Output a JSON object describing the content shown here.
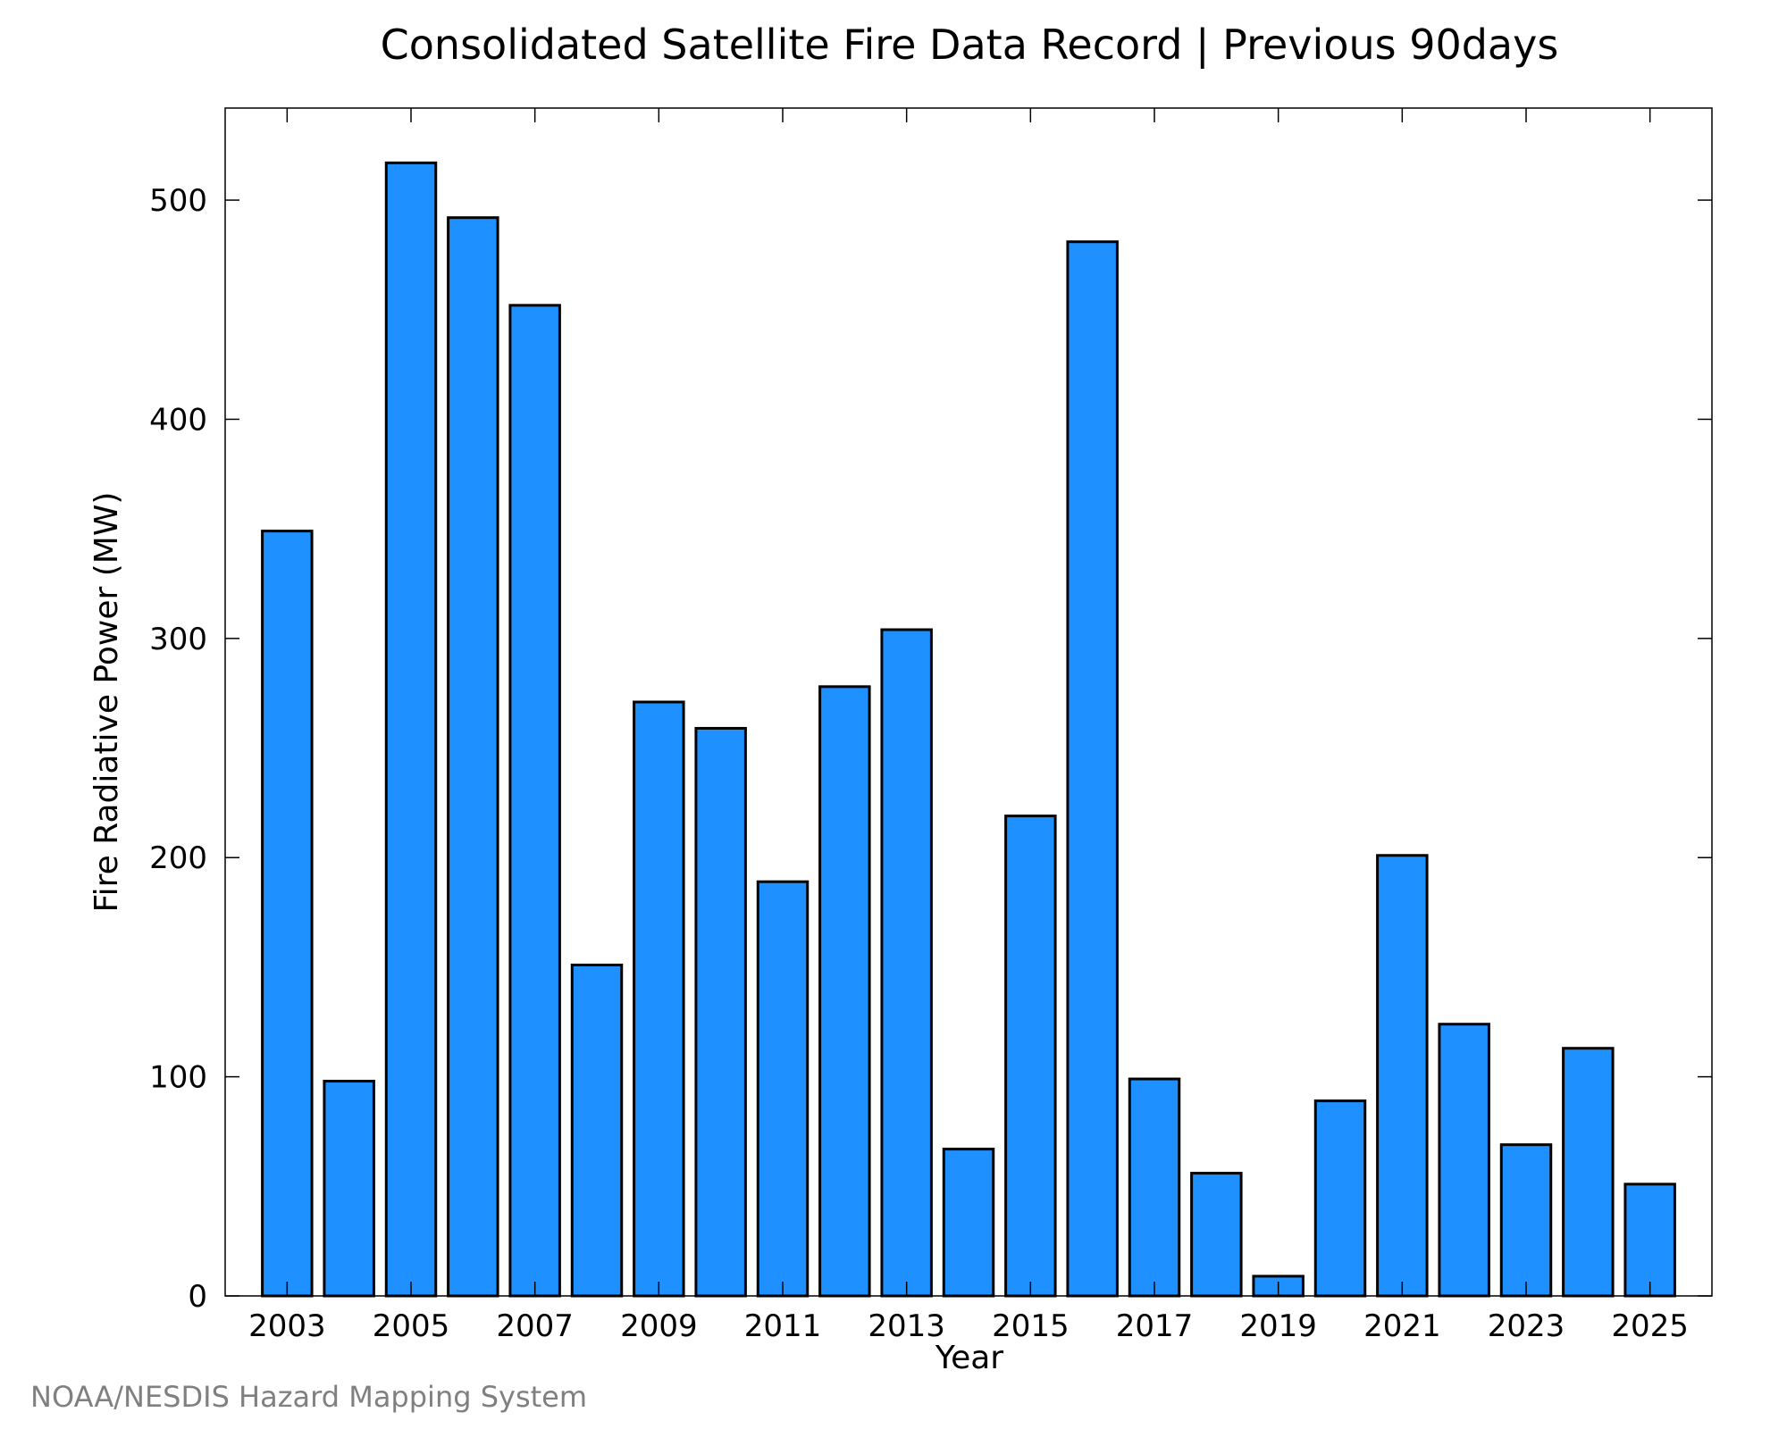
{
  "chart_data": {
    "type": "bar",
    "title": "Consolidated Satellite Fire Data Record | Previous 90days",
    "xlabel": "Year",
    "ylabel": "Fire Radiative Power (MW)",
    "categories": [
      2003,
      2004,
      2005,
      2006,
      2007,
      2008,
      2009,
      2010,
      2011,
      2012,
      2013,
      2014,
      2015,
      2016,
      2017,
      2018,
      2019,
      2020,
      2021,
      2022,
      2023,
      2024,
      2025
    ],
    "values": [
      349,
      98,
      517,
      492,
      452,
      151,
      271,
      259,
      189,
      278,
      304,
      67,
      219,
      481,
      99,
      56,
      9,
      89,
      201,
      124,
      69,
      113,
      51
    ],
    "x_tick_labels": [
      "2003",
      "2005",
      "2007",
      "2009",
      "2011",
      "2013",
      "2015",
      "2017",
      "2019",
      "2021",
      "2023",
      "2025"
    ],
    "y_ticks": [
      0,
      100,
      200,
      300,
      400,
      500
    ],
    "xlim": [
      2002,
      2026
    ],
    "ylim": [
      0,
      542
    ],
    "grid": false,
    "bar_color": "#1e90ff",
    "bar_edge_color": "#000000"
  },
  "credit": "NOAA/NESDIS Hazard Mapping System"
}
